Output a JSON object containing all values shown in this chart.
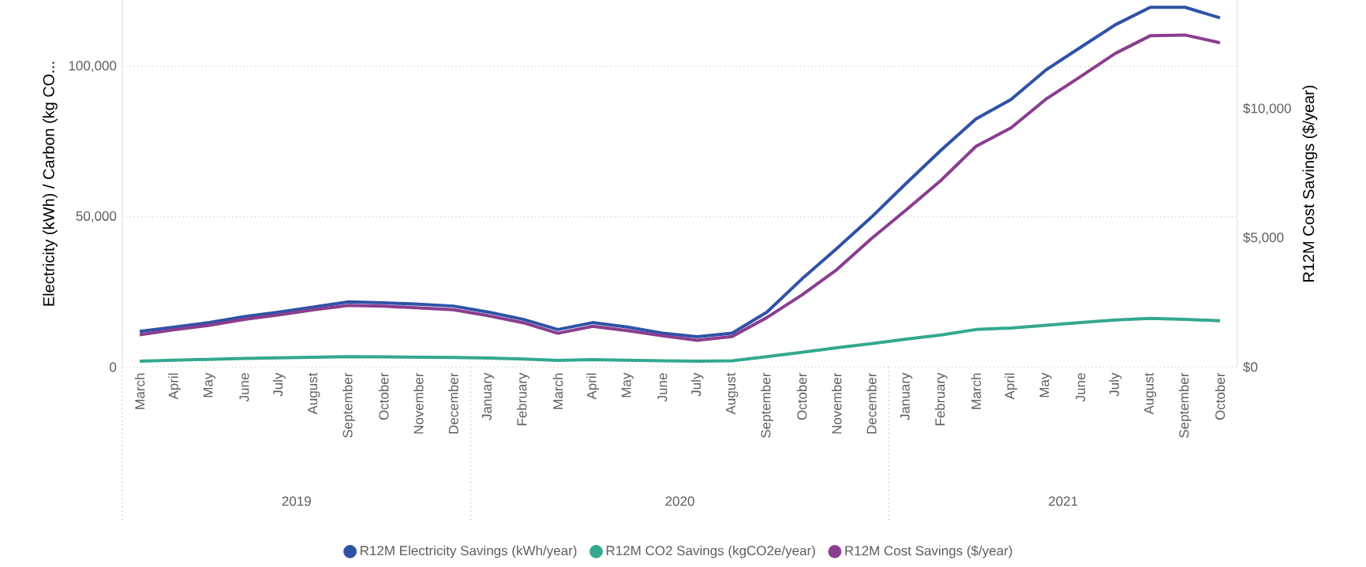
{
  "chart_data": {
    "type": "line",
    "categories": [
      "March",
      "April",
      "May",
      "June",
      "July",
      "August",
      "September",
      "October",
      "November",
      "December",
      "January",
      "February",
      "March",
      "April",
      "May",
      "June",
      "July",
      "August",
      "September",
      "October",
      "November",
      "December",
      "January",
      "February",
      "March",
      "April",
      "May",
      "June",
      "July",
      "August",
      "September",
      "October"
    ],
    "series": [
      {
        "name": "R12M Electricity Savings (kWh/year)",
        "color": "#2f52a7",
        "values": [
          11900,
          13300,
          14800,
          16800,
          18300,
          20000,
          21700,
          21400,
          20900,
          20300,
          18300,
          15900,
          12500,
          14800,
          13300,
          11300,
          10100,
          11300,
          18300,
          29300,
          39400,
          49900,
          61200,
          72200,
          82600,
          89000,
          98800,
          106400,
          113900,
          119700,
          119700,
          116200
        ]
      },
      {
        "name": "R12M CO2 Savings (kgCO2e/year)",
        "color": "#33a88f",
        "values": [
          2000,
          2300,
          2600,
          2900,
          3100,
          3300,
          3500,
          3400,
          3300,
          3200,
          3000,
          2700,
          2200,
          2500,
          2300,
          2100,
          2000,
          2100,
          3500,
          4900,
          6400,
          7800,
          9300,
          10700,
          12500,
          13000,
          13900,
          14800,
          15700,
          16200,
          15900,
          15400
        ]
      },
      {
        "name": "R12M Cost Savings ($/year)",
        "color": "#8a3d8f",
        "axis": "y2",
        "values": [
          1250,
          1450,
          1620,
          1850,
          2020,
          2220,
          2390,
          2360,
          2290,
          2220,
          1990,
          1720,
          1310,
          1580,
          1410,
          1210,
          1040,
          1180,
          1920,
          2790,
          3770,
          4980,
          6090,
          7240,
          8550,
          9260,
          10370,
          11250,
          12150,
          12830,
          12860,
          12560
        ]
      }
    ],
    "ylabel": "Electricity (kWh) / Carbon (kg CO...",
    "y2label": "R12M Cost Savings ($/year)",
    "ylim": [
      0,
      122000
    ],
    "yticks": [
      {
        "value": 0,
        "label": "0"
      },
      {
        "value": 50000,
        "label": "50,000"
      },
      {
        "value": 100000,
        "label": "100,000"
      }
    ],
    "y2lim": [
      0,
      14200
    ],
    "y2ticks": [
      {
        "value": 0,
        "label": "$0"
      },
      {
        "value": 5000,
        "label": "$5,000"
      },
      {
        "value": 10000,
        "label": "$10,000"
      }
    ],
    "annotations": [
      "2019",
      "2020",
      "2021"
    ],
    "grid": "y",
    "legend": "bottom",
    "line_style": "solid",
    "marker": "none"
  }
}
